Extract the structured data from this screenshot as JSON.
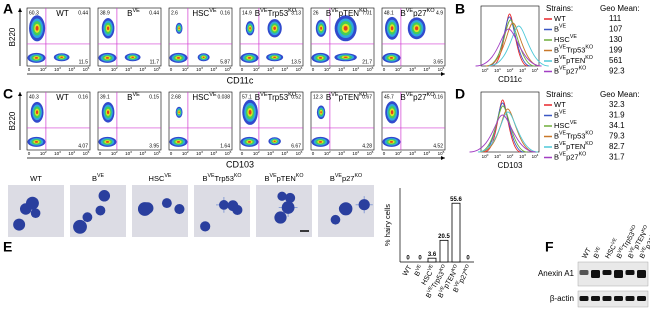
{
  "strains": [
    {
      "name": [
        {
          "text": "WT"
        }
      ],
      "color": "#e8262a"
    },
    {
      "name": [
        {
          "text": "B"
        },
        {
          "text": "VE",
          "sup": true
        }
      ],
      "color": "#3b57c4"
    },
    {
      "name": [
        {
          "text": "HSC"
        },
        {
          "text": "VE",
          "sup": true
        }
      ],
      "color": "#6fae3b"
    },
    {
      "name": [
        {
          "text": "B"
        },
        {
          "text": "VE",
          "sup": true
        },
        {
          "text": "Trp53"
        },
        {
          "text": "KO",
          "sup": true
        }
      ],
      "color": "#c9782a"
    },
    {
      "name": [
        {
          "text": "B"
        },
        {
          "text": "VE",
          "sup": true
        },
        {
          "text": "pTEN"
        },
        {
          "text": "KO",
          "sup": true
        }
      ],
      "color": "#4ec9d8"
    },
    {
      "name": [
        {
          "text": "B"
        },
        {
          "text": "VE",
          "sup": true
        },
        {
          "text": "p27"
        },
        {
          "text": "KO",
          "sup": true
        }
      ],
      "color": "#a23ec4"
    }
  ],
  "flow_ticks": [
    [
      {
        "text": "0"
      }
    ],
    [
      {
        "text": "10"
      },
      {
        "text": "2",
        "sup": true
      }
    ],
    [
      {
        "text": "10"
      },
      {
        "text": "3",
        "sup": true
      }
    ],
    [
      {
        "text": "10"
      },
      {
        "text": "4",
        "sup": true
      }
    ],
    [
      {
        "text": "10"
      },
      {
        "text": "5",
        "sup": true
      }
    ]
  ],
  "hist_ticks": [
    [
      {
        "text": "10"
      },
      {
        "text": "0",
        "sup": true
      }
    ],
    [
      {
        "text": "10"
      },
      {
        "text": "1",
        "sup": true
      }
    ],
    [
      {
        "text": "10"
      },
      {
        "text": "2",
        "sup": true
      }
    ],
    [
      {
        "text": "10"
      },
      {
        "text": "3",
        "sup": true
      }
    ],
    [
      {
        "text": "10"
      },
      {
        "text": "4",
        "sup": true
      }
    ]
  ],
  "A": {
    "letter": "A",
    "y_label": "B220",
    "x_label": "CD11c",
    "quadrants": [
      [
        60.3,
        0.44,
        11.5
      ],
      [
        38.9,
        0.44,
        11.7
      ],
      [
        2.6,
        0.16,
        5.87
      ],
      [
        14.9,
        3.13,
        13.5
      ],
      [
        26.0,
        7.01,
        21.7
      ],
      [
        48.1,
        4.9,
        3.65
      ]
    ]
  },
  "B": {
    "letter": "B",
    "legend_title": "Strains:",
    "stat_title": "Geo Mean:",
    "x_label": "CD11c",
    "geo_means": [
      111,
      107,
      130,
      199,
      561,
      92.3
    ]
  },
  "C": {
    "letter": "C",
    "y_label": "B220",
    "x_label": "CD103",
    "quadrants": [
      [
        40.3,
        0.16,
        4.07
      ],
      [
        39.1,
        0.15,
        3.95
      ],
      [
        2.68,
        0.038,
        1.64
      ],
      [
        57.1,
        0.52,
        6.67
      ],
      [
        12.3,
        0.67,
        4.28
      ],
      [
        45.7,
        0.16,
        4.52
      ]
    ]
  },
  "D": {
    "letter": "D",
    "legend_title": "Strains:",
    "stat_title": "Geo Mean:",
    "x_label": "CD103",
    "geo_means": [
      32.3,
      31.9,
      34.1,
      79.3,
      82.7,
      31.7
    ]
  },
  "E": {
    "letter": "E",
    "y_label": "% hairy cells",
    "values": [
      0,
      0,
      3.6,
      20.5,
      55.6,
      0
    ],
    "ylim": [
      0,
      70
    ]
  },
  "F": {
    "letter": "F",
    "bands": [
      "Anexin A1",
      "β-actin"
    ]
  }
}
